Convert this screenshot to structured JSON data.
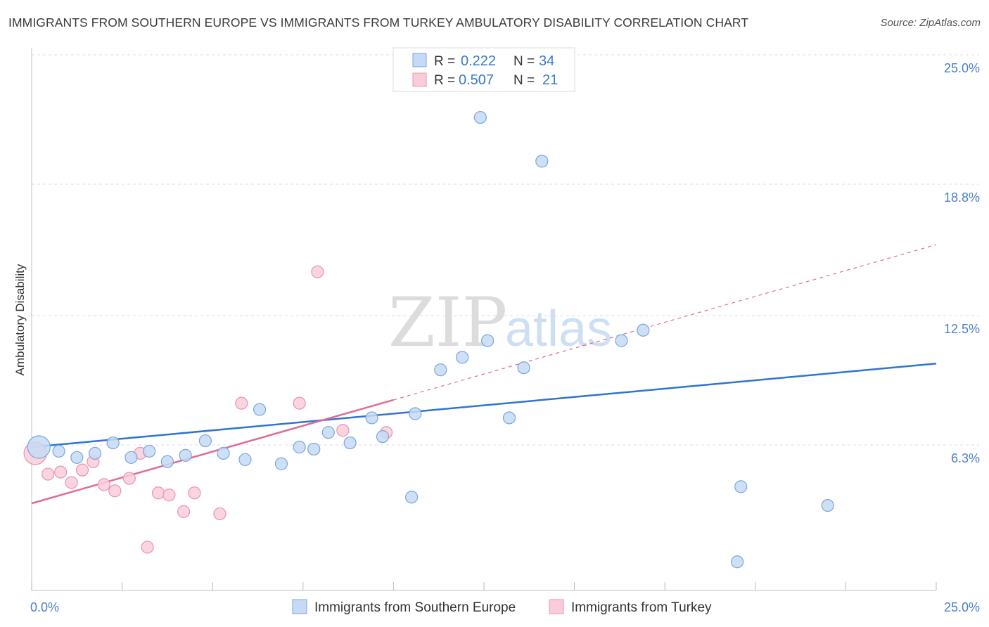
{
  "header": {
    "title": "IMMIGRANTS FROM SOUTHERN EUROPE VS IMMIGRANTS FROM TURKEY AMBULATORY DISABILITY CORRELATION CHART",
    "source": "Source: ZipAtlas.com"
  },
  "watermark": {
    "zip": "ZIP",
    "atlas": "atlas"
  },
  "colors": {
    "blue_fill": "#c6daf5",
    "blue_stroke": "#7aa6de",
    "blue_line": "#2f74d0",
    "pink_fill": "#f9ccd9",
    "pink_stroke": "#ea93b0",
    "pink_line": "#e06a96",
    "grid": "#dddddd",
    "tick_text": "#4a7fcc"
  },
  "chart_data": {
    "type": "scatter",
    "title": "IMMIGRANTS FROM SOUTHERN EUROPE VS IMMIGRANTS FROM TURKEY AMBULATORY DISABILITY CORRELATION CHART",
    "xlabel": "",
    "ylabel": "Ambulatory Disability",
    "xlim": [
      0,
      25
    ],
    "ylim": [
      0,
      25
    ],
    "x_tick_labels": [
      "0.0%",
      "25.0%"
    ],
    "y_ticks": [
      6.3,
      12.5,
      18.8,
      25.0
    ],
    "y_tick_labels": [
      "6.3%",
      "12.5%",
      "18.8%",
      "25.0%"
    ],
    "grid": true,
    "legend_position": "top-center",
    "series": [
      {
        "name": "Immigrants from Southern Europe",
        "color": "blue",
        "R": "0.222",
        "N": "34",
        "r_label": "R =",
        "n_label": "N =",
        "trend": {
          "x0": 0,
          "y0": 6.2,
          "x1": 25,
          "y1": 10.2,
          "dashed_from": null
        },
        "points": [
          {
            "x": 0.2,
            "y": 6.2,
            "big": true
          },
          {
            "x": 0.75,
            "y": 6.0
          },
          {
            "x": 1.25,
            "y": 5.7
          },
          {
            "x": 1.75,
            "y": 5.9
          },
          {
            "x": 2.25,
            "y": 6.4
          },
          {
            "x": 2.75,
            "y": 5.7
          },
          {
            "x": 3.25,
            "y": 6.0
          },
          {
            "x": 3.75,
            "y": 5.5
          },
          {
            "x": 4.25,
            "y": 5.8
          },
          {
            "x": 4.8,
            "y": 6.5
          },
          {
            "x": 5.3,
            "y": 5.9
          },
          {
            "x": 5.9,
            "y": 5.6
          },
          {
            "x": 6.3,
            "y": 8.0
          },
          {
            "x": 6.9,
            "y": 5.4
          },
          {
            "x": 7.4,
            "y": 6.2
          },
          {
            "x": 7.8,
            "y": 6.1
          },
          {
            "x": 8.2,
            "y": 6.9
          },
          {
            "x": 8.8,
            "y": 6.4
          },
          {
            "x": 9.4,
            "y": 7.6
          },
          {
            "x": 9.7,
            "y": 6.7
          },
          {
            "x": 10.5,
            "y": 3.8
          },
          {
            "x": 10.6,
            "y": 7.8
          },
          {
            "x": 11.3,
            "y": 9.9
          },
          {
            "x": 11.9,
            "y": 10.5
          },
          {
            "x": 12.4,
            "y": 22.0
          },
          {
            "x": 12.6,
            "y": 11.3
          },
          {
            "x": 13.2,
            "y": 7.6
          },
          {
            "x": 13.6,
            "y": 10.0
          },
          {
            "x": 14.1,
            "y": 19.9
          },
          {
            "x": 16.3,
            "y": 11.3
          },
          {
            "x": 16.9,
            "y": 11.8
          },
          {
            "x": 19.6,
            "y": 4.3
          },
          {
            "x": 19.5,
            "y": 0.7
          },
          {
            "x": 22.0,
            "y": 3.4
          }
        ]
      },
      {
        "name": "Immigrants from Turkey",
        "color": "pink",
        "R": "0.507",
        "N": "21",
        "r_label": "R =",
        "n_label": "N =",
        "trend": {
          "x0": 0,
          "y0": 3.5,
          "x1": 25,
          "y1": 15.9,
          "dashed_from": 10.0
        },
        "points": [
          {
            "x": 0.1,
            "y": 5.9,
            "big": true
          },
          {
            "x": 0.45,
            "y": 4.9
          },
          {
            "x": 0.8,
            "y": 5.0
          },
          {
            "x": 1.1,
            "y": 4.5
          },
          {
            "x": 1.4,
            "y": 5.1
          },
          {
            "x": 1.7,
            "y": 5.5
          },
          {
            "x": 2.0,
            "y": 4.4
          },
          {
            "x": 2.3,
            "y": 4.1
          },
          {
            "x": 2.7,
            "y": 4.7
          },
          {
            "x": 3.0,
            "y": 5.9
          },
          {
            "x": 3.2,
            "y": 1.4
          },
          {
            "x": 3.5,
            "y": 4.0
          },
          {
            "x": 3.8,
            "y": 3.9
          },
          {
            "x": 4.2,
            "y": 3.1
          },
          {
            "x": 4.5,
            "y": 4.0
          },
          {
            "x": 5.2,
            "y": 3.0
          },
          {
            "x": 5.8,
            "y": 8.3
          },
          {
            "x": 7.4,
            "y": 8.3
          },
          {
            "x": 7.9,
            "y": 14.6
          },
          {
            "x": 8.6,
            "y": 7.0
          },
          {
            "x": 9.8,
            "y": 6.9
          }
        ]
      }
    ]
  }
}
